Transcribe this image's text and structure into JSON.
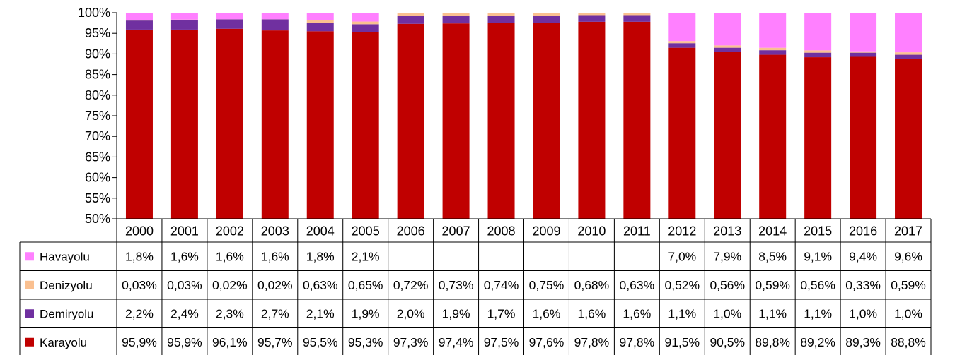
{
  "chart_data": {
    "type": "bar",
    "stacked": true,
    "normalized": true,
    "categories": [
      "2000",
      "2001",
      "2002",
      "2003",
      "2004",
      "2005",
      "2006",
      "2007",
      "2008",
      "2009",
      "2010",
      "2011",
      "2012",
      "2013",
      "2014",
      "2015",
      "2016",
      "2017"
    ],
    "ylim": [
      50,
      100
    ],
    "y_ticks": [
      "50%",
      "55%",
      "60%",
      "65%",
      "70%",
      "75%",
      "80%",
      "85%",
      "90%",
      "95%",
      "100%"
    ],
    "grid": false,
    "legend": "left-of-data-table",
    "series": [
      {
        "name": "Karayolu",
        "color": "#C00000",
        "values": [
          95.9,
          95.9,
          96.1,
          95.7,
          95.5,
          95.3,
          97.3,
          97.4,
          97.5,
          97.6,
          97.8,
          97.8,
          91.5,
          90.5,
          89.8,
          89.2,
          89.3,
          88.8
        ],
        "labels": [
          "95,9%",
          "95,9%",
          "96,1%",
          "95,7%",
          "95,5%",
          "95,3%",
          "97,3%",
          "97,4%",
          "97,5%",
          "97,6%",
          "97,8%",
          "97,8%",
          "91,5%",
          "90,5%",
          "89,8%",
          "89,2%",
          "89,3%",
          "88,8%"
        ]
      },
      {
        "name": "Demiryolu",
        "color": "#7030A0",
        "values": [
          2.2,
          2.4,
          2.3,
          2.7,
          2.1,
          1.9,
          2.0,
          1.9,
          1.7,
          1.6,
          1.6,
          1.6,
          1.1,
          1.0,
          1.1,
          1.1,
          1.0,
          1.0
        ],
        "labels": [
          "2,2%",
          "2,4%",
          "2,3%",
          "2,7%",
          "2,1%",
          "1,9%",
          "2,0%",
          "1,9%",
          "1,7%",
          "1,6%",
          "1,6%",
          "1,6%",
          "1,1%",
          "1,0%",
          "1,1%",
          "1,1%",
          "1,0%",
          "1,0%"
        ]
      },
      {
        "name": "Denizyolu",
        "color": "#FAC090",
        "values": [
          0.03,
          0.03,
          0.02,
          0.02,
          0.63,
          0.65,
          0.72,
          0.73,
          0.74,
          0.75,
          0.68,
          0.63,
          0.52,
          0.56,
          0.59,
          0.56,
          0.33,
          0.59
        ],
        "labels": [
          "0,03%",
          "0,03%",
          "0,02%",
          "0,02%",
          "0,63%",
          "0,65%",
          "0,72%",
          "0,73%",
          "0,74%",
          "0,75%",
          "0,68%",
          "0,63%",
          "0,52%",
          "0,56%",
          "0,59%",
          "0,56%",
          "0,33%",
          "0,59%"
        ]
      },
      {
        "name": "Havayolu",
        "color": "#FF80FF",
        "values": [
          1.8,
          1.6,
          1.6,
          1.6,
          1.8,
          2.1,
          null,
          null,
          null,
          null,
          null,
          null,
          7.0,
          7.9,
          8.5,
          9.1,
          9.4,
          9.6
        ],
        "labels": [
          "1,8%",
          "1,6%",
          "1,6%",
          "1,6%",
          "1,8%",
          "2,1%",
          "",
          "",
          "",
          "",
          "",
          "",
          "7,0%",
          "7,9%",
          "8,5%",
          "9,1%",
          "9,4%",
          "9,6%"
        ]
      }
    ],
    "table_row_order": [
      "Havayolu",
      "Denizyolu",
      "Demiryolu",
      "Karayolu"
    ]
  }
}
